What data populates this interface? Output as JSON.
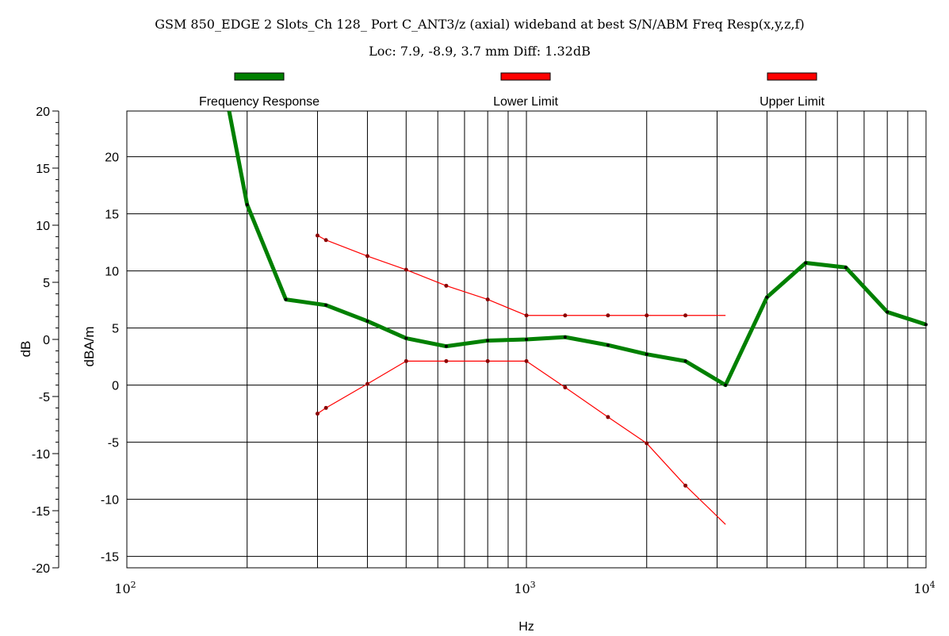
{
  "chart_data": {
    "type": "line",
    "title": "GSM 850_EDGE 2 Slots_Ch 128_ Port C_ANT3/z (axial) wideband at best S/N/ABM Freq Resp(x,y,z,f)",
    "subtitle": "Loc: 7.9, -8.9, 3.7 mm Diff: 1.32dB",
    "xlabel": "Hz",
    "ylabel_left": "dB",
    "ylabel_right": "dBA/m",
    "x_scale": "log",
    "xlim": [
      100,
      10000
    ],
    "x_ticks": [
      {
        "base": "10",
        "exp": "2"
      },
      {
        "base": "10",
        "exp": "3"
      },
      {
        "base": "10",
        "exp": "4"
      }
    ],
    "y_left": {
      "lim": [
        -20,
        20
      ],
      "ticks": [
        "20",
        "15",
        "10",
        "5",
        "0",
        "-5",
        "-10",
        "-15",
        "-20"
      ]
    },
    "y_right": {
      "lim": [
        -16,
        24
      ],
      "ticks": [
        "20",
        "15",
        "10",
        "5",
        "0",
        "-5",
        "-10",
        "-15"
      ]
    },
    "grid": true,
    "legend_position": "top",
    "series": [
      {
        "name": "Frequency Response",
        "color": "#008000",
        "axis": "right",
        "x": [
          178,
          200,
          250,
          315,
          400,
          500,
          630,
          800,
          1000,
          1250,
          1600,
          2000,
          2500,
          3150,
          4000,
          5000,
          6300,
          8000,
          10000
        ],
        "y": [
          25,
          15.8,
          7.5,
          7.0,
          5.6,
          4.1,
          3.4,
          3.9,
          4.0,
          4.2,
          3.5,
          2.7,
          2.1,
          0.0,
          7.7,
          10.7,
          10.3,
          6.4,
          5.3
        ]
      },
      {
        "name": "Lower Limit",
        "color": "#ff0000",
        "axis": "right",
        "x": [
          300,
          315,
          400,
          500,
          630,
          800,
          1000,
          1250,
          1600,
          2000,
          2500,
          3150
        ],
        "y": [
          -2.5,
          -2.0,
          0.1,
          2.1,
          2.1,
          2.1,
          2.1,
          -0.2,
          -2.8,
          -5.1,
          -8.8,
          -12.2
        ]
      },
      {
        "name": "Upper Limit",
        "color": "#ff0000",
        "axis": "right",
        "x": [
          300,
          315,
          400,
          500,
          630,
          800,
          1000,
          1250,
          1600,
          2000,
          2500,
          3150
        ],
        "y": [
          13.1,
          12.7,
          11.3,
          10.1,
          8.7,
          7.5,
          6.1,
          6.1,
          6.1,
          6.1,
          6.1,
          6.1
        ]
      }
    ]
  }
}
